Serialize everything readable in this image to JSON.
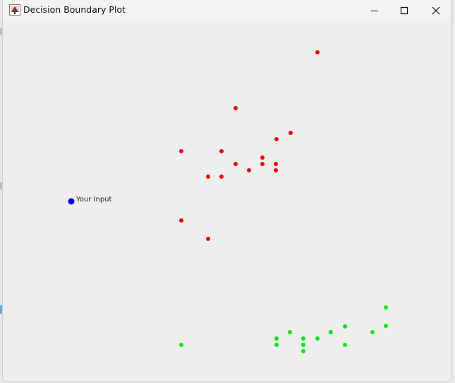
{
  "window": {
    "title": "Decision Boundary Plot",
    "controls": [
      "minimize",
      "maximize",
      "close"
    ]
  },
  "icons": {
    "app": "java-app-icon",
    "minimize": "minimize-icon",
    "maximize": "maximize-icon",
    "close": "close-icon"
  },
  "colors": {
    "class_a": "#ff0000",
    "class_b": "#00ee00",
    "input": "#0000ff",
    "background": "#eeeeee"
  },
  "chart_data": {
    "type": "scatter",
    "series": [
      {
        "color": "#ff0000",
        "points": [
          [
            449,
            74
          ],
          [
            333,
            153
          ],
          [
            411,
            188
          ],
          [
            391,
            197
          ],
          [
            256,
            214
          ],
          [
            313,
            214
          ],
          [
            371,
            223
          ],
          [
            333,
            232
          ],
          [
            371,
            232
          ],
          [
            390,
            232
          ],
          [
            352,
            241
          ],
          [
            390,
            241
          ],
          [
            294,
            250
          ],
          [
            313,
            250
          ],
          [
            256,
            312
          ],
          [
            294,
            338
          ]
        ]
      },
      {
        "color": "#00ee00",
        "points": [
          [
            546,
            435
          ],
          [
            488,
            462
          ],
          [
            546,
            461
          ],
          [
            410,
            470
          ],
          [
            468,
            470
          ],
          [
            527,
            470
          ],
          [
            391,
            479
          ],
          [
            429,
            479
          ],
          [
            449,
            479
          ],
          [
            256,
            488
          ],
          [
            391,
            488
          ],
          [
            429,
            488
          ],
          [
            488,
            488
          ],
          [
            429,
            497
          ]
        ]
      },
      {
        "color": "#0000ff",
        "label": "Your Input",
        "points": [
          [
            100,
            285
          ]
        ]
      }
    ]
  }
}
